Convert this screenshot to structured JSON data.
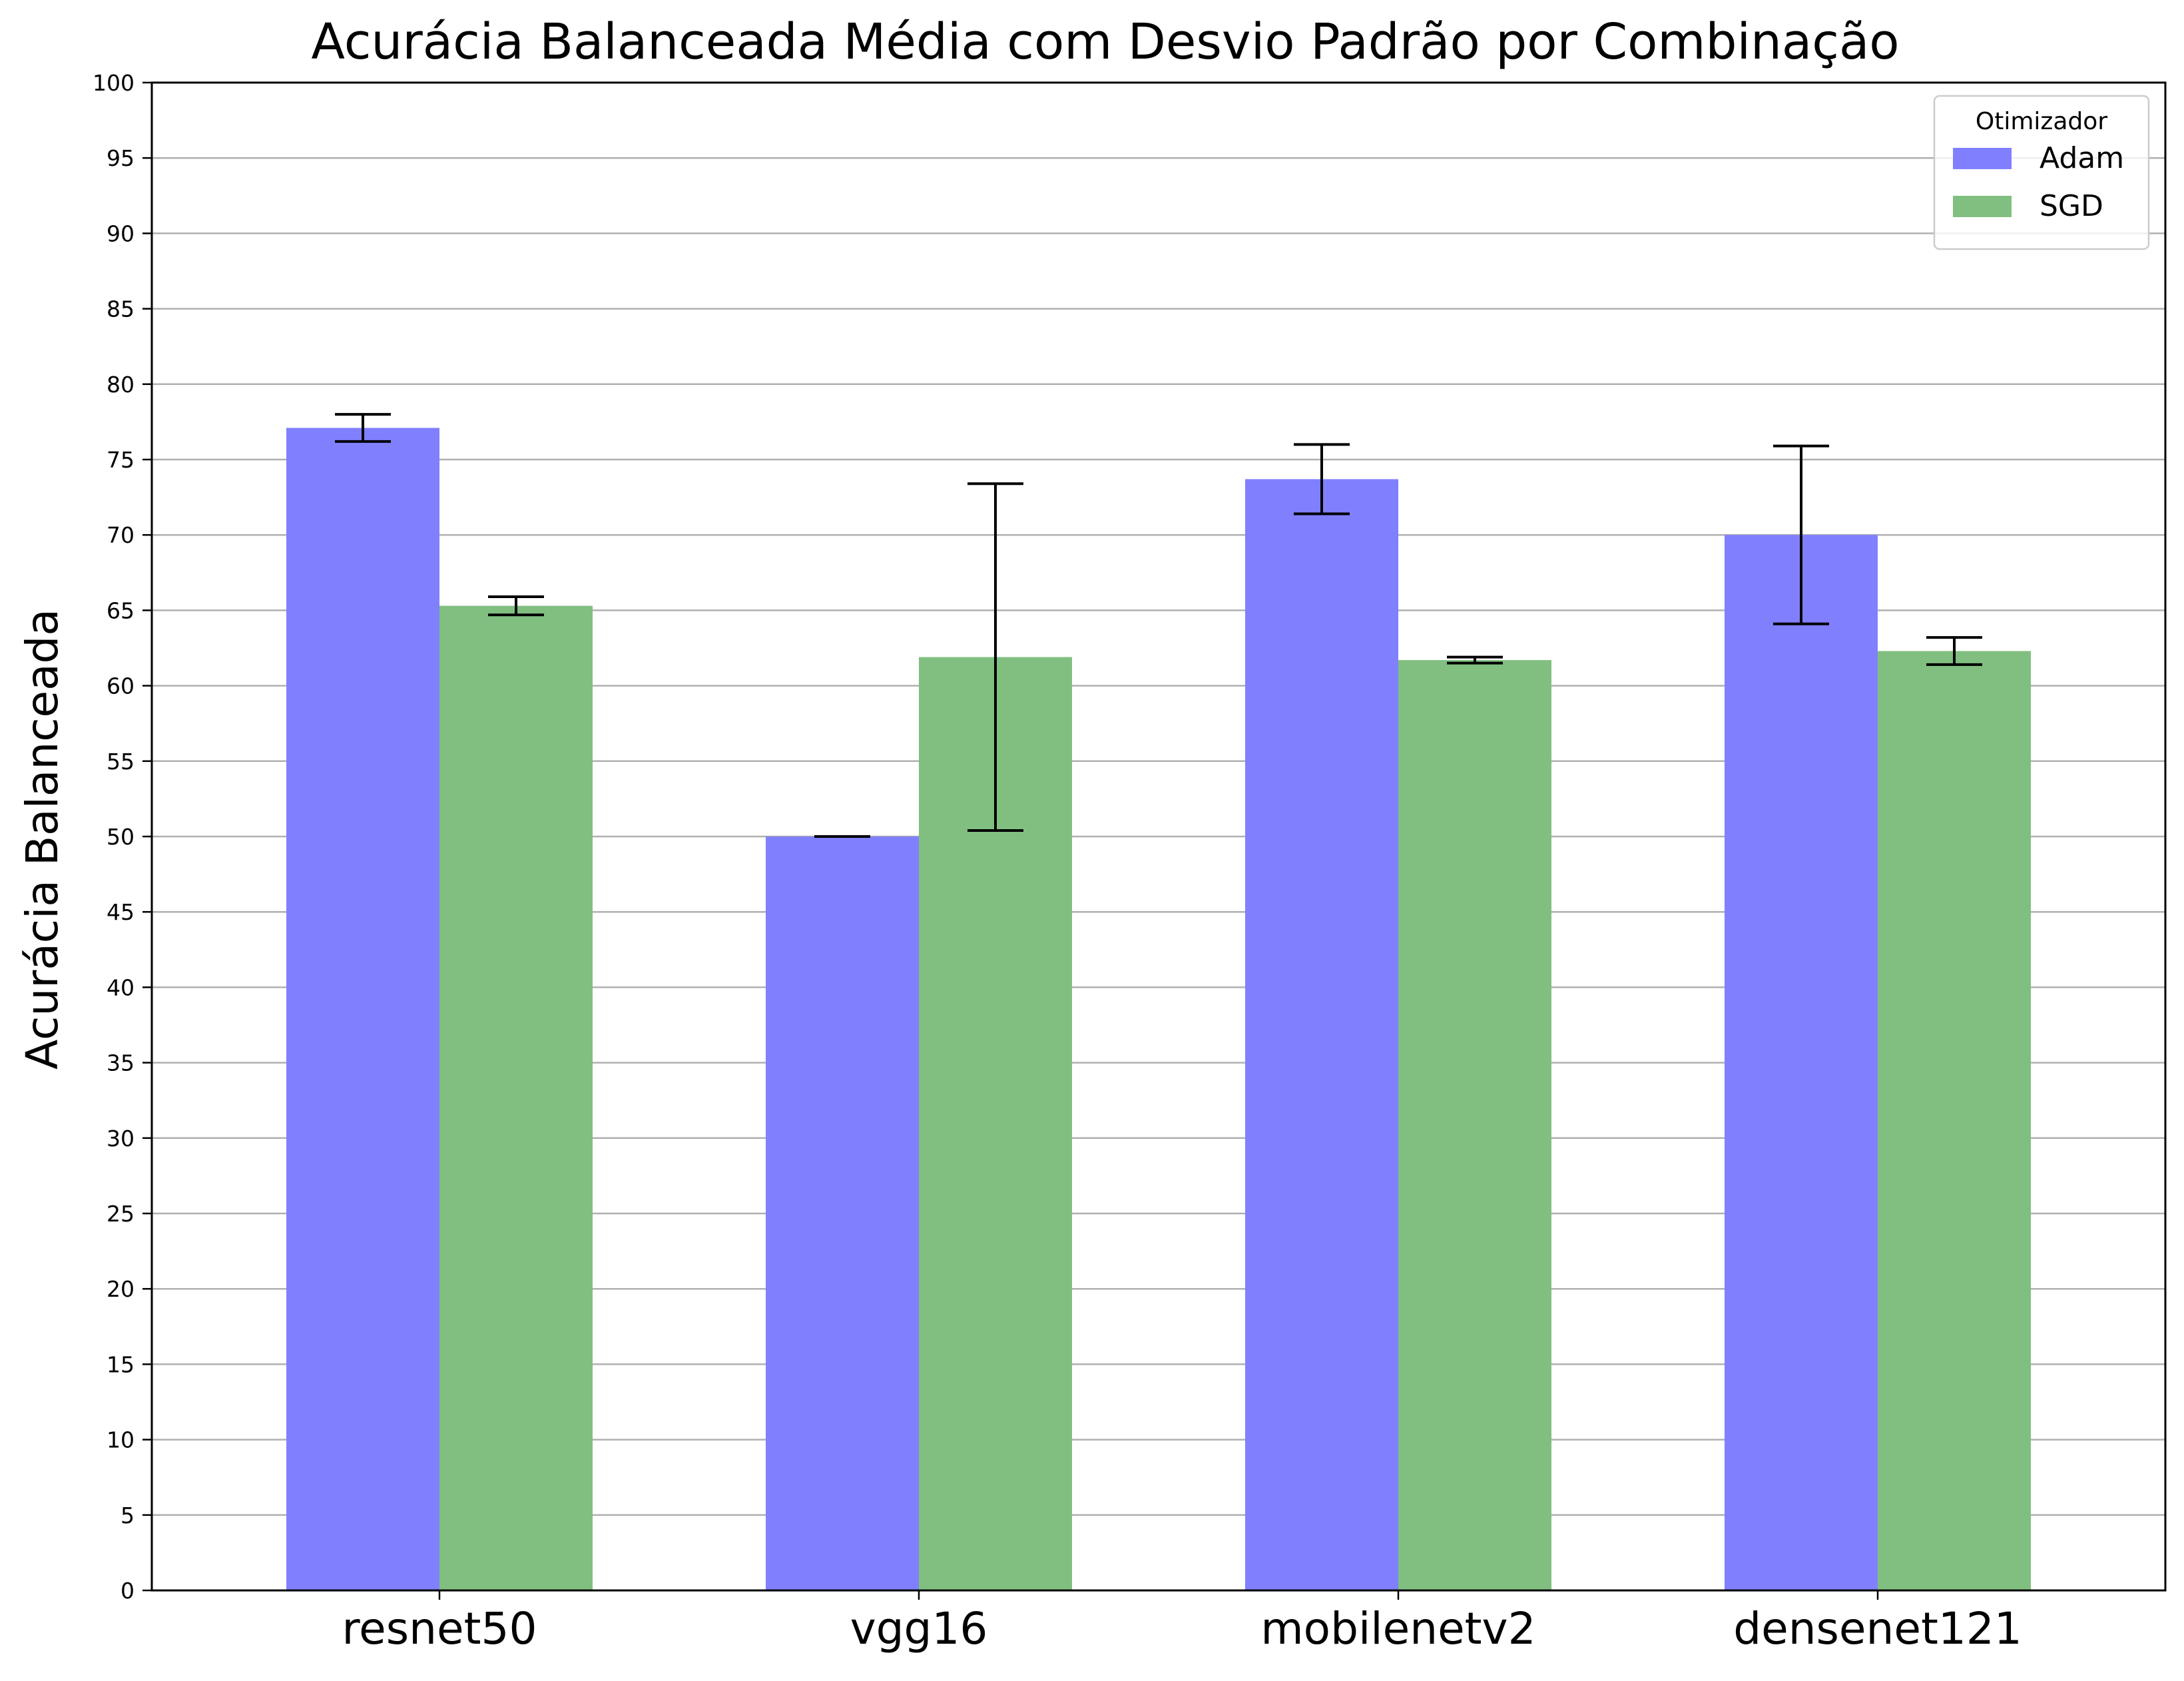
{
  "chart_data": {
    "type": "bar",
    "title": "Acurácia Balanceada Média com Desvio Padrão por Combinação",
    "xlabel": "",
    "ylabel": "Acurácia Balanceada",
    "categories": [
      "resnet50",
      "vgg16",
      "mobilenetv2",
      "densenet121"
    ],
    "ylim": [
      0,
      100
    ],
    "yticks": [
      "0",
      "5",
      "10",
      "15",
      "20",
      "25",
      "30",
      "35",
      "40",
      "45",
      "50",
      "55",
      "60",
      "65",
      "70",
      "75",
      "80",
      "85",
      "90",
      "95",
      "100"
    ],
    "grid": "horizontal",
    "series": [
      {
        "name": "Adam",
        "color": "#8080ff",
        "values": [
          77.1,
          50.0,
          73.7,
          70.0
        ],
        "errors": [
          0.9,
          0.0,
          2.3,
          5.9
        ]
      },
      {
        "name": "SGD",
        "color": "#80bf80",
        "values": [
          65.3,
          61.9,
          61.7,
          62.3
        ],
        "errors": [
          0.6,
          11.5,
          0.2,
          0.9
        ]
      }
    ],
    "legend": {
      "title": "Otimizador",
      "position": "top-right"
    }
  }
}
